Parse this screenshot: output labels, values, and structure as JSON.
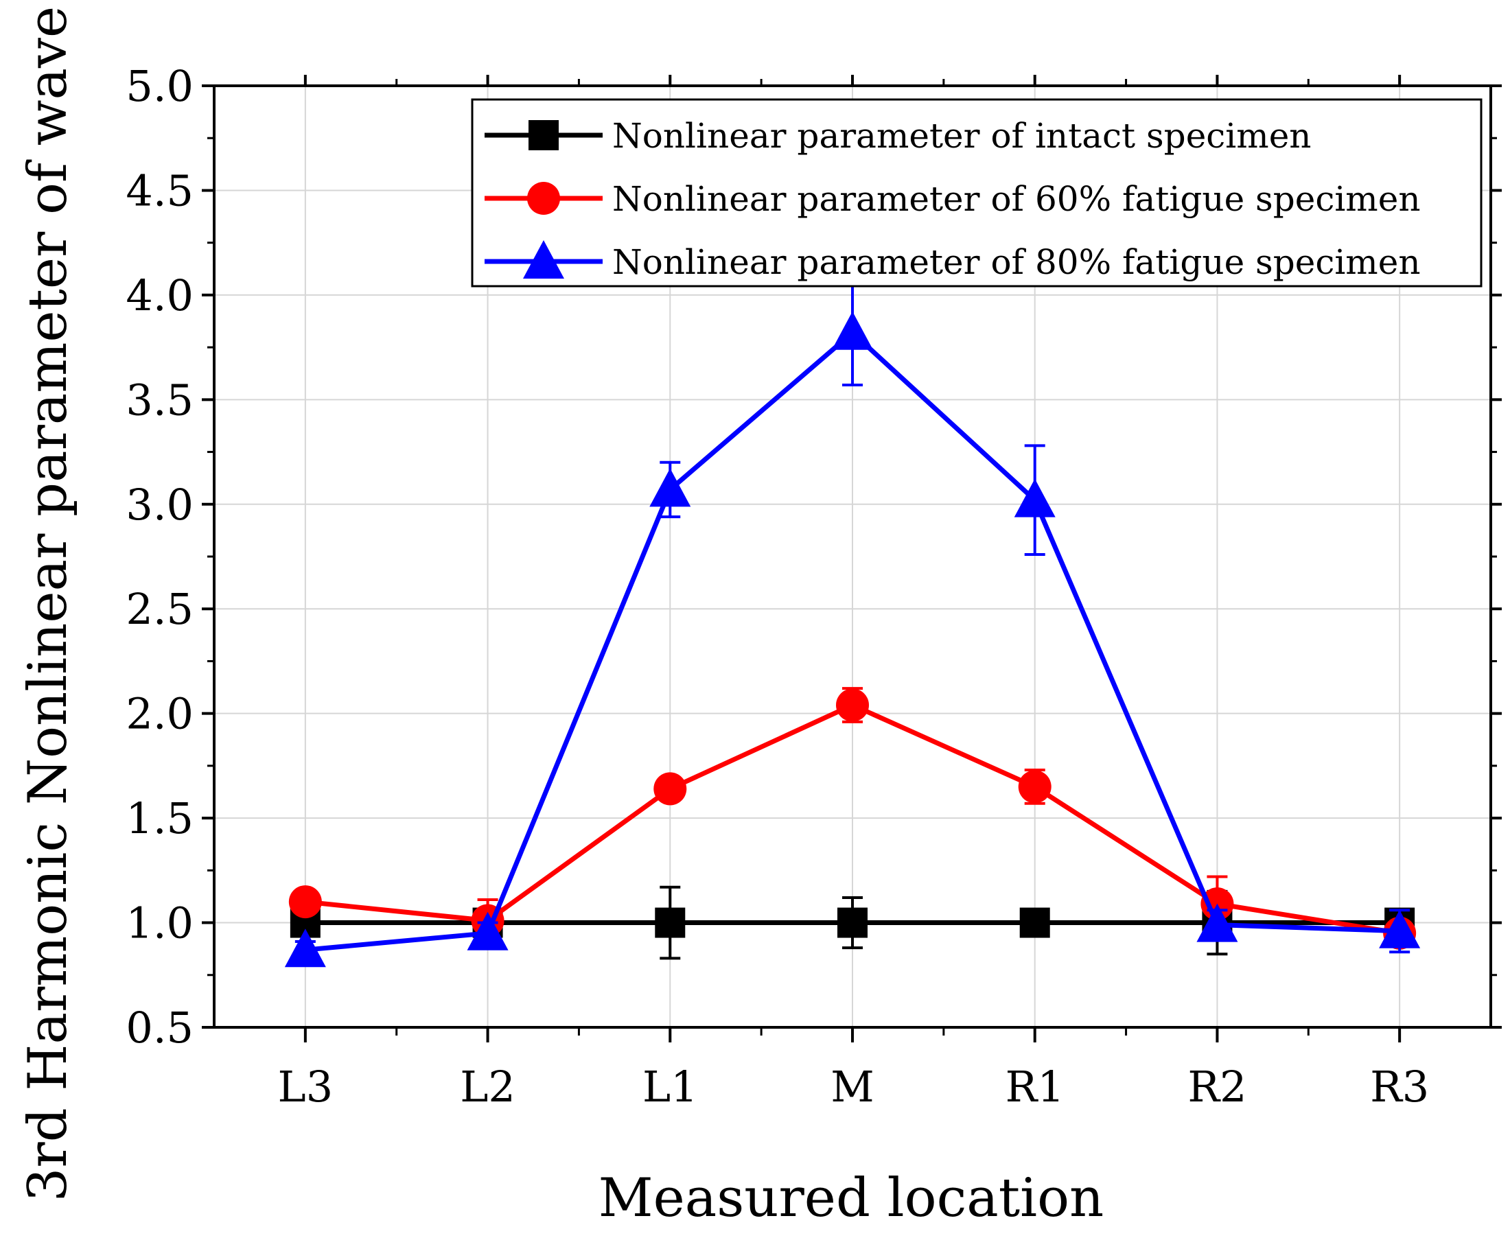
{
  "chart_data": {
    "type": "line",
    "title": "",
    "xlabel": "Measured location",
    "ylabel": "3rd Harmonic Nonlinear parameter of wave",
    "categories": [
      "L3",
      "L2",
      "L1",
      "M",
      "R1",
      "R2",
      "R3"
    ],
    "ylim": [
      0.5,
      5.0
    ],
    "yticks": [
      "0.5",
      "1.0",
      "1.5",
      "2.0",
      "2.5",
      "3.0",
      "3.5",
      "4.0",
      "4.5",
      "5.0"
    ],
    "grid": true,
    "legend_position": "top-right",
    "series": [
      {
        "name": "Nonlinear parameter of intact specimen",
        "color": "#000000",
        "marker": "square",
        "values": [
          1.0,
          1.0,
          1.0,
          1.0,
          1.0,
          1.0,
          1.0
        ],
        "errors": [
          0.03,
          0.04,
          0.17,
          0.12,
          0.04,
          0.15,
          0.03
        ]
      },
      {
        "name": "Nonlinear parameter of 60% fatigue specimen",
        "color": "#ff0000",
        "marker": "circle",
        "values": [
          1.1,
          1.01,
          1.64,
          2.04,
          1.65,
          1.09,
          0.95
        ],
        "errors": [
          0.03,
          0.1,
          0.04,
          0.08,
          0.08,
          0.13,
          0.03
        ]
      },
      {
        "name": "Nonlinear parameter of 80% fatigue specimen",
        "color": "#0000ff",
        "marker": "triangle",
        "values": [
          0.87,
          0.95,
          3.07,
          3.82,
          3.02,
          0.99,
          0.96
        ],
        "errors": [
          0.04,
          0.05,
          0.13,
          0.25,
          0.26,
          0.07,
          0.1
        ]
      }
    ]
  }
}
